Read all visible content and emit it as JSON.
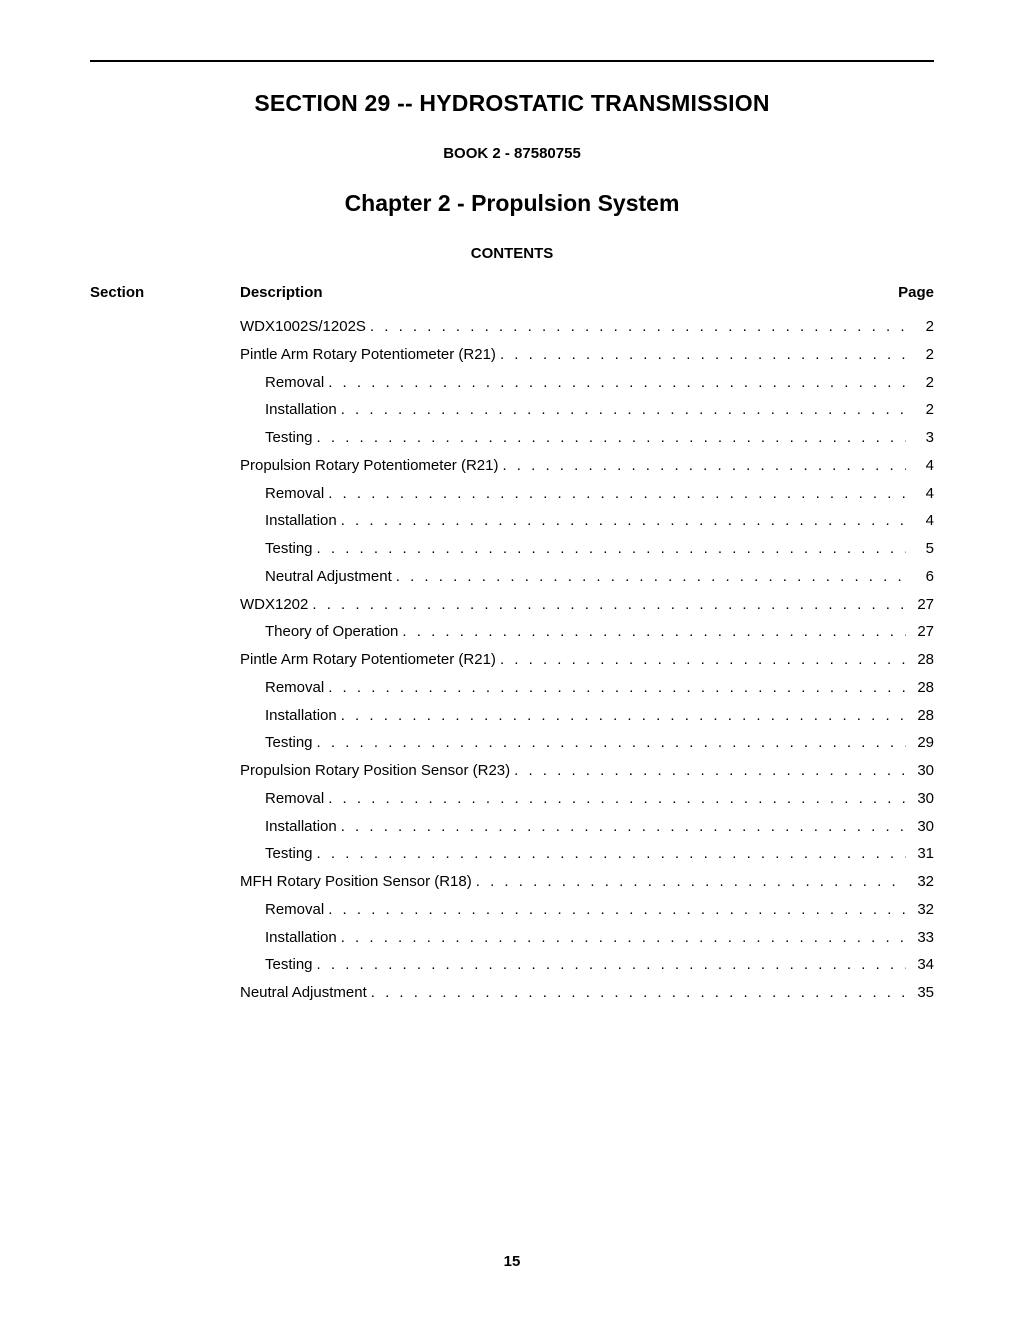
{
  "section_title": "SECTION 29 -- HYDROSTATIC TRANSMISSION",
  "book_line": "BOOK 2 - 87580755",
  "chapter_title": "Chapter 2 - Propulsion System",
  "contents_heading": "CONTENTS",
  "headers": {
    "section": "Section",
    "description": "Description",
    "page": "Page"
  },
  "toc": [
    {
      "indent": 0,
      "label": "WDX1002S/1202S",
      "page": "2"
    },
    {
      "indent": 0,
      "label": "Pintle Arm Rotary Potentiometer (R21)",
      "page": "2"
    },
    {
      "indent": 1,
      "label": "Removal",
      "page": "2"
    },
    {
      "indent": 1,
      "label": "Installation",
      "page": "2"
    },
    {
      "indent": 1,
      "label": "Testing",
      "page": "3"
    },
    {
      "indent": 0,
      "label": "Propulsion Rotary Potentiometer (R21)",
      "page": "4"
    },
    {
      "indent": 1,
      "label": "Removal",
      "page": "4"
    },
    {
      "indent": 1,
      "label": "Installation",
      "page": "4"
    },
    {
      "indent": 1,
      "label": "Testing",
      "page": "5"
    },
    {
      "indent": 1,
      "label": "Neutral Adjustment",
      "page": "6"
    },
    {
      "indent": 0,
      "label": "WDX1202",
      "page": "27"
    },
    {
      "indent": 1,
      "label": "Theory of Operation",
      "page": "27"
    },
    {
      "indent": 0,
      "label": "Pintle Arm Rotary Potentiometer (R21)",
      "page": "28"
    },
    {
      "indent": 1,
      "label": "Removal",
      "page": "28"
    },
    {
      "indent": 1,
      "label": "Installation",
      "page": "28"
    },
    {
      "indent": 1,
      "label": "Testing",
      "page": "29"
    },
    {
      "indent": 0,
      "label": "Propulsion Rotary Position Sensor (R23)",
      "page": "30"
    },
    {
      "indent": 1,
      "label": "Removal",
      "page": "30"
    },
    {
      "indent": 1,
      "label": "Installation",
      "page": "30"
    },
    {
      "indent": 1,
      "label": "Testing",
      "page": "31"
    },
    {
      "indent": 0,
      "label": "MFH Rotary Position Sensor (R18)",
      "page": "32"
    },
    {
      "indent": 1,
      "label": "Removal",
      "page": "32"
    },
    {
      "indent": 1,
      "label": "Installation",
      "page": "33"
    },
    {
      "indent": 1,
      "label": "Testing",
      "page": "34"
    },
    {
      "indent": 0,
      "label": "Neutral Adjustment",
      "page": "35"
    }
  ],
  "page_number": "15"
}
